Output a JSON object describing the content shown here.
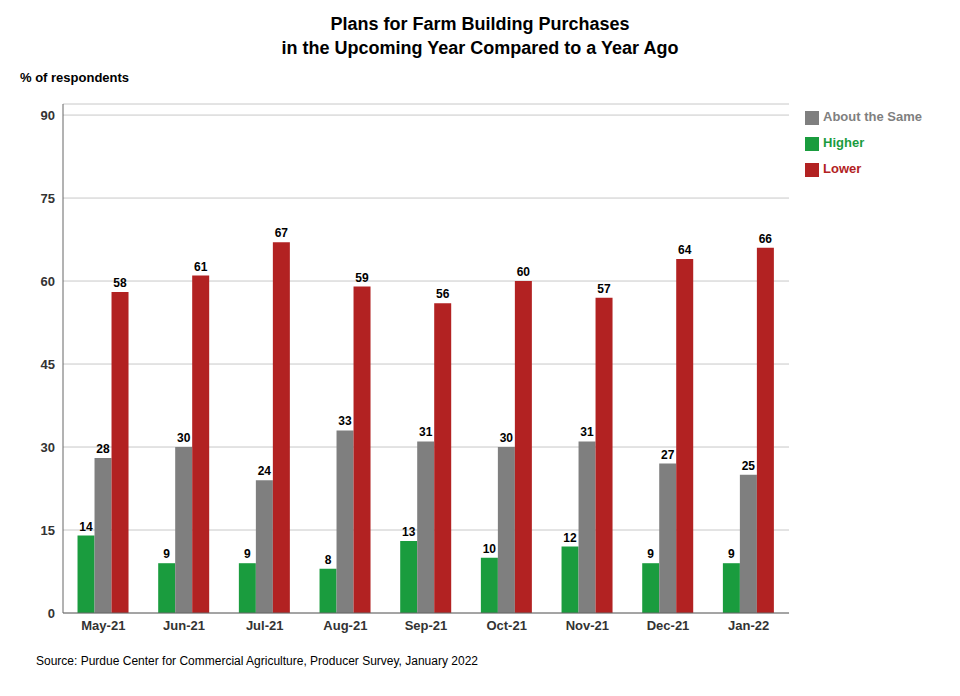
{
  "chart_data": {
    "type": "bar",
    "title": "Plans for Farm Building Purchases",
    "subtitle": "in the Upcoming Year Compared to a Year Ago",
    "y_label": "% of respondents",
    "annotations": [
      "Source: Purdue Center for Commercial Agriculture, Producer Survey, January 2022"
    ],
    "categories": [
      "May-21",
      "Jun-21",
      "Jul-21",
      "Aug-21",
      "Sep-21",
      "Oct-21",
      "Nov-21",
      "Dec-21",
      "Jan-22"
    ],
    "series": [
      {
        "name": "Higher",
        "color": "#1a9c3e",
        "values": [
          14,
          9,
          9,
          8,
          13,
          10,
          12,
          9,
          9
        ]
      },
      {
        "name": "About the Same",
        "color": "#7f7f7f",
        "values": [
          28,
          30,
          24,
          33,
          31,
          30,
          31,
          27,
          25
        ]
      },
      {
        "name": "Lower",
        "color": "#b22222",
        "values": [
          58,
          61,
          67,
          59,
          56,
          60,
          57,
          64,
          66
        ]
      }
    ],
    "ylim": [
      0,
      92
    ],
    "yticks": [
      0,
      15,
      30,
      45,
      60,
      75,
      90
    ],
    "grid": true,
    "legend": "upper right",
    "data_labels": true
  }
}
